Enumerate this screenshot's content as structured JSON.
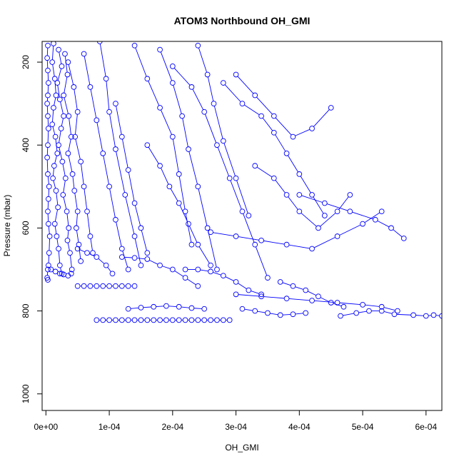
{
  "chart_data": {
    "type": "scatter",
    "title": "ATOM3 Northbound OH_GMI",
    "xlabel": "OH_GMI",
    "ylabel": "Pressure (mbar)",
    "xlim": [
      -6e-06,
      0.000625
    ],
    "ylim": [
      1040,
      150
    ],
    "y_reversed": true,
    "x_ticks": [
      {
        "v": 0,
        "label": "0e+00"
      },
      {
        "v": 0.0001,
        "label": "1e-04"
      },
      {
        "v": 0.0002,
        "label": "2e-04"
      },
      {
        "v": 0.0003,
        "label": "3e-04"
      },
      {
        "v": 0.0004,
        "label": "4e-04"
      },
      {
        "v": 0.0005,
        "label": "5e-04"
      },
      {
        "v": 0.0006,
        "label": "6e-04"
      }
    ],
    "y_ticks": [
      {
        "v": 200,
        "label": "200"
      },
      {
        "v": 400,
        "label": "400"
      },
      {
        "v": 600,
        "label": "600"
      },
      {
        "v": 800,
        "label": "800"
      },
      {
        "v": 1000,
        "label": "1000"
      }
    ],
    "series_color": "#0000ff",
    "marker": "open-circle",
    "connect_points": true,
    "series": [
      {
        "x": [
          3e-06,
          2e-06,
          3e-06,
          4e-06,
          3e-06,
          2e-06,
          3e-06,
          4e-06,
          3e-06,
          2e-06,
          3e-06,
          5e-06,
          4e-06,
          3e-06,
          4e-06,
          6e-06,
          5e-06,
          4e-06,
          3e-06,
          2e-06,
          3e-06
        ],
        "y": [
          160,
          190,
          220,
          250,
          280,
          300,
          330,
          360,
          400,
          430,
          470,
          500,
          530,
          560,
          590,
          620,
          660,
          690,
          700,
          720,
          725
        ]
      },
      {
        "x": [
          1.2e-05,
          1e-05,
          1.4e-05,
          1.6e-05,
          1.2e-05,
          1e-05,
          1.5e-05,
          1.8e-05,
          1.3e-05,
          1.1e-05,
          1.6e-05,
          1.9e-05,
          1.4e-05,
          1.7e-05,
          2e-05,
          2.2e-05,
          2.5e-05
        ],
        "y": [
          155,
          200,
          240,
          280,
          310,
          350,
          380,
          420,
          450,
          480,
          510,
          550,
          590,
          620,
          650,
          690,
          710
        ]
      },
      {
        "x": [
          2e-05,
          2.5e-05,
          1.8e-05,
          2.2e-05,
          2.8e-05,
          2.4e-05,
          2e-05,
          2.6e-05,
          3.1e-05,
          2.7e-05,
          3.3e-05,
          3.6e-05,
          3.4e-05,
          3.8e-05,
          4.1e-05
        ],
        "y": [
          170,
          210,
          250,
          290,
          330,
          360,
          400,
          440,
          480,
          520,
          560,
          600,
          630,
          660,
          700
        ]
      },
      {
        "x": [
          3e-05,
          3.4e-05,
          2.8e-05,
          3.6e-05,
          4e-05,
          3.5e-05,
          4.2e-05,
          4.5e-05,
          5e-05,
          4.8e-05,
          5.2e-05,
          5.5e-05
        ],
        "y": [
          180,
          230,
          280,
          330,
          380,
          420,
          470,
          510,
          560,
          600,
          640,
          680
        ]
      },
      {
        "x": [
          3.5e-05,
          4.4e-05,
          5e-05,
          4.6e-05,
          5.5e-05,
          6e-05,
          6.5e-05,
          7e-05,
          7.4e-05
        ],
        "y": [
          200,
          260,
          320,
          380,
          440,
          500,
          560,
          620,
          660
        ]
      },
      {
        "x": [
          8e-06,
          1.5e-05,
          2.2e-05,
          2.8e-05,
          3.5e-05,
          4e-05
        ],
        "y": [
          700,
          705,
          710,
          712,
          715,
          710
        ]
      },
      {
        "x": [
          6e-05,
          7e-05,
          8e-05,
          9e-05,
          0.0001,
          0.00011,
          0.00012,
          0.00013
        ],
        "y": [
          180,
          260,
          340,
          420,
          500,
          580,
          650,
          700
        ]
      },
      {
        "x": [
          8.5e-05,
          9.5e-05,
          0.0001,
          0.00011,
          0.000125,
          0.00014,
          0.00015
        ],
        "y": [
          150,
          240,
          320,
          410,
          520,
          620,
          690
        ]
      },
      {
        "x": [
          5e-05,
          6e-05,
          7e-05,
          8e-05,
          9e-05,
          0.0001,
          0.00011,
          0.00012,
          0.00013,
          0.00014
        ],
        "y": [
          740,
          740,
          740,
          740,
          740,
          740,
          740,
          740,
          740,
          740
        ]
      },
      {
        "x": [
          8e-05,
          9e-05,
          0.0001,
          0.00011,
          0.00012,
          0.00013,
          0.00014,
          0.00015,
          0.00016,
          0.00017,
          0.00018,
          0.00019,
          0.0002,
          0.00021,
          0.00022,
          0.00023,
          0.00024,
          0.00025,
          0.00026,
          0.00027,
          0.00028,
          0.00029
        ],
        "y": [
          822,
          822,
          822,
          822,
          822,
          822,
          822,
          822,
          822,
          822,
          822,
          822,
          822,
          822,
          822,
          822,
          822,
          822,
          822,
          822,
          822,
          822
        ]
      },
      {
        "x": [
          0.00013,
          0.00015,
          0.00017,
          0.00019,
          0.00021,
          0.00023,
          0.00025
        ],
        "y": [
          795,
          792,
          790,
          788,
          790,
          793,
          795
        ]
      },
      {
        "x": [
          0.00012,
          0.00014,
          0.00016,
          0.00018,
          0.0002,
          0.00022,
          0.00024
        ],
        "y": [
          670,
          672,
          675,
          690,
          700,
          720,
          740
        ]
      },
      {
        "x": [
          0.00014,
          0.00016,
          0.00018,
          0.0002,
          0.00021,
          0.00022,
          0.00023
        ],
        "y": [
          160,
          240,
          310,
          380,
          470,
          560,
          640
        ]
      },
      {
        "x": [
          0.00018,
          0.0002,
          0.000215,
          0.000225,
          0.00024,
          0.000255,
          0.00027
        ],
        "y": [
          170,
          250,
          330,
          410,
          500,
          600,
          700
        ]
      },
      {
        "x": [
          0.0002,
          0.00023,
          0.00025,
          0.00027,
          0.00029,
          0.00031,
          0.00033,
          0.00035
        ],
        "y": [
          210,
          260,
          320,
          400,
          480,
          560,
          640,
          720
        ]
      },
      {
        "x": [
          0.00024,
          0.000255,
          0.000265,
          0.00028,
          0.0003,
          0.00032
        ],
        "y": [
          160,
          230,
          300,
          390,
          480,
          570
        ]
      },
      {
        "x": [
          0.00028,
          0.00031,
          0.00034,
          0.00036,
          0.00038,
          0.0004,
          0.00042,
          0.00044
        ],
        "y": [
          250,
          300,
          330,
          370,
          420,
          470,
          520,
          570
        ]
      },
      {
        "x": [
          0.0003,
          0.00033,
          0.00036,
          0.00039,
          0.00042,
          0.00045
        ],
        "y": [
          230,
          280,
          330,
          380,
          360,
          310
        ]
      },
      {
        "x": [
          0.00033,
          0.00036,
          0.00038,
          0.0004,
          0.00043,
          0.00046,
          0.00048
        ],
        "y": [
          450,
          480,
          520,
          560,
          600,
          560,
          520
        ]
      },
      {
        "x": [
          0.00026,
          0.0003,
          0.00034,
          0.00038,
          0.00042,
          0.00046,
          0.0005,
          0.00053
        ],
        "y": [
          610,
          620,
          630,
          640,
          650,
          620,
          590,
          560
        ]
      },
      {
        "x": [
          0.0004,
          0.00044,
          0.00048,
          0.00052,
          0.000545,
          0.000565
        ],
        "y": [
          520,
          540,
          560,
          580,
          600,
          625
        ]
      },
      {
        "x": [
          0.0003,
          0.00034,
          0.00038,
          0.00042,
          0.00046,
          0.0005,
          0.00053,
          0.000555
        ],
        "y": [
          760,
          765,
          770,
          775,
          780,
          785,
          790,
          800
        ]
      },
      {
        "x": [
          0.000465,
          0.00049,
          0.00051,
          0.00053,
          0.00055,
          0.00058,
          0.0006,
          0.000612,
          0.000625
        ],
        "y": [
          812,
          805,
          800,
          800,
          808,
          810,
          812,
          810,
          812
        ]
      },
      {
        "x": [
          0.00022,
          0.00024,
          0.00026,
          0.00028,
          0.0003,
          0.00032,
          0.00034
        ],
        "y": [
          700,
          700,
          705,
          715,
          730,
          750,
          760
        ]
      },
      {
        "x": [
          0.00016,
          0.00018,
          0.000195,
          0.00021,
          0.000225,
          0.00024,
          0.00026
        ],
        "y": [
          400,
          450,
          500,
          540,
          590,
          640,
          690
        ]
      },
      {
        "x": [
          0.00011,
          0.00012,
          0.00013,
          0.00014,
          0.00015,
          0.00016
        ],
        "y": [
          300,
          380,
          460,
          540,
          600,
          660
        ]
      },
      {
        "x": [
          0.00037,
          0.00039,
          0.00041,
          0.00043,
          0.00045,
          0.00047
        ],
        "y": [
          730,
          740,
          750,
          765,
          780,
          790
        ]
      },
      {
        "x": [
          5e-05,
          6.5e-05,
          8e-05,
          9.5e-05,
          0.000105
        ],
        "y": [
          650,
          660,
          670,
          690,
          710
        ]
      },
      {
        "x": [
          0.00031,
          0.00033,
          0.00035,
          0.00037,
          0.00039,
          0.00041
        ],
        "y": [
          795,
          800,
          805,
          810,
          808,
          805
        ]
      }
    ]
  }
}
